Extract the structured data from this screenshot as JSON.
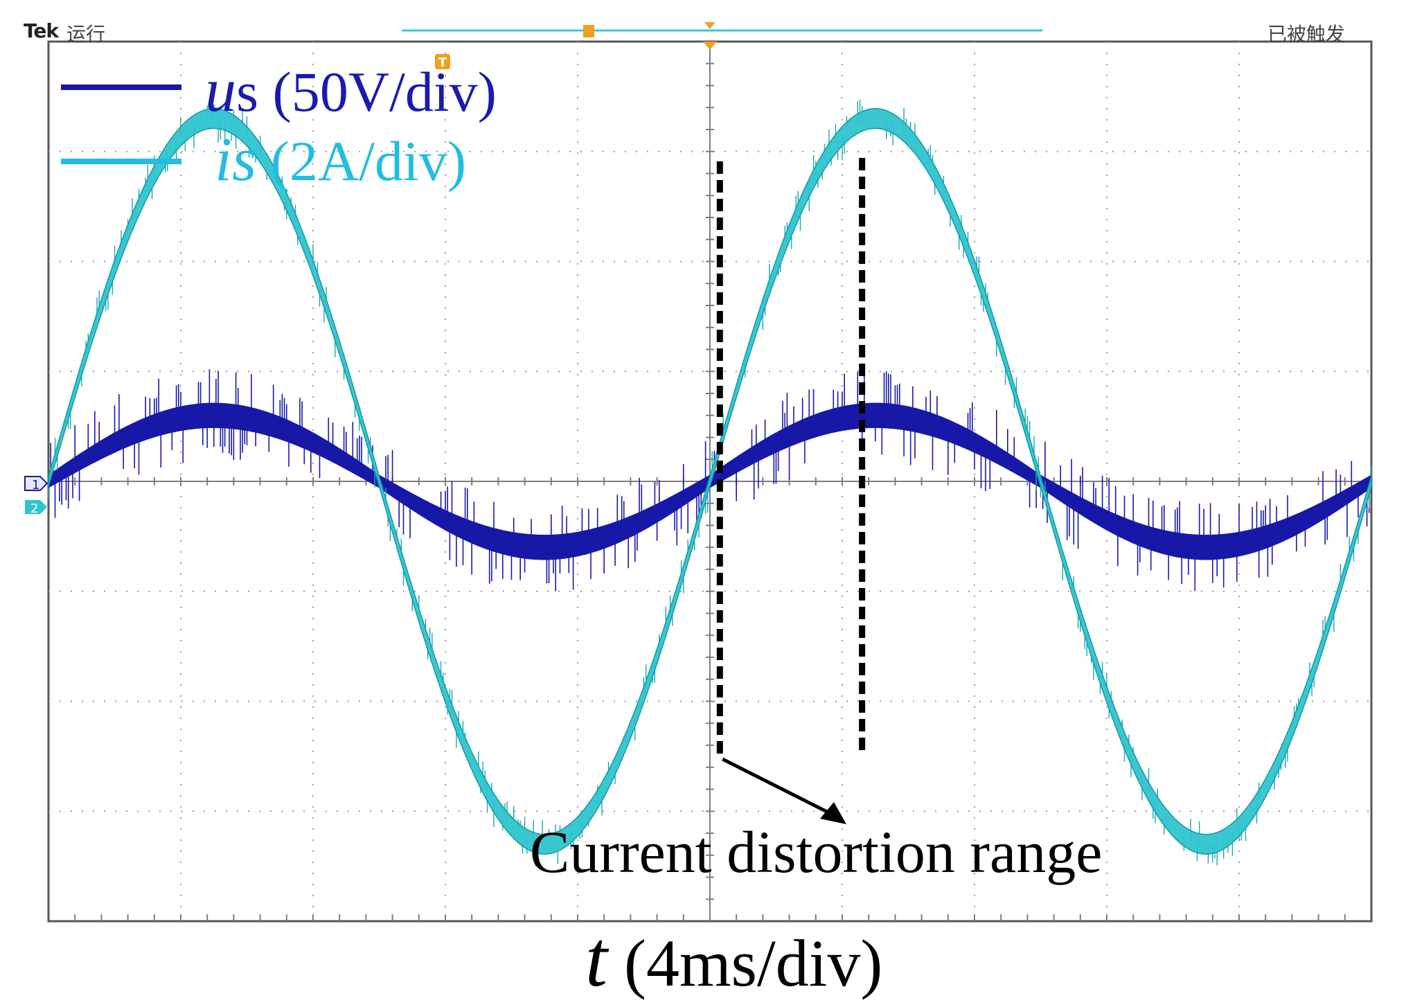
{
  "chart_data": {
    "type": "line",
    "title": "",
    "xlabel": {
      "symbol": "t",
      "unit": "(4ms/div)"
    },
    "ylabel": "",
    "divisions": {
      "horizontal": 10,
      "vertical": 8
    },
    "grid": true,
    "xlim_ms": [
      -20,
      20
    ],
    "ylim_div": [
      -4,
      4
    ],
    "time_per_div_ms": 4,
    "series": [
      {
        "name": "us",
        "symbol": "u",
        "subscript": "s",
        "scale": "(50V/div)",
        "color": "#1818a8",
        "amplitude_div": 0.6,
        "amplitude_V": 30,
        "period_ms": 20,
        "phase_deg": 0,
        "zero_crossings_ms": [
          -20,
          -10,
          0,
          10,
          20
        ]
      },
      {
        "name": "is",
        "symbol": "i",
        "subscript": "s",
        "scale": "(2A/div)",
        "color": "#2ec4cf",
        "amplitude_div": 3.3,
        "amplitude_A": 6.6,
        "period_ms": 20,
        "phase_deg": 0,
        "zero_crossings_ms": [
          -20,
          -10,
          0,
          10,
          20
        ],
        "peaks_ms": [
          -15,
          5
        ],
        "troughs_ms": [
          -5,
          15
        ]
      }
    ],
    "annotation": {
      "text": "Current distortion range",
      "range_ms": [
        0.3,
        4.6
      ]
    }
  },
  "scope": {
    "brand": "Tek",
    "run_status": "运行",
    "trigger_status": "已被触发",
    "ch1_marker": "1",
    "ch2_marker": "2",
    "trigger_marker": "T",
    "colors": {
      "grid": "#9a9a9a",
      "frame": "#555555",
      "annotation": "#000000"
    }
  }
}
